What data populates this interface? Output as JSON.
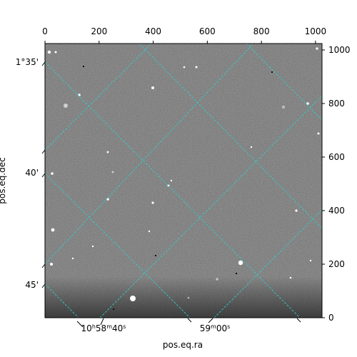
{
  "chart_data": {
    "type": "image",
    "xlabel": "pos.eq.ra",
    "ylabel": "pos.eq.dec",
    "pixel_axes": {
      "x": {
        "range": [
          0,
          1024
        ],
        "ticks": [
          0,
          200,
          400,
          600,
          800,
          1000
        ]
      },
      "y": {
        "range": [
          0,
          1024
        ],
        "ticks": [
          0,
          200,
          400,
          600,
          800,
          1000
        ]
      }
    },
    "ra_ticks": [
      {
        "label": "10h58m40s",
        "base": "10",
        "parts": [
          [
            "h",
            "58"
          ],
          [
            "m",
            "40"
          ],
          [
            "s",
            ""
          ]
        ]
      },
      {
        "label": "59m00s",
        "base": "59",
        "parts": [
          [
            "m",
            "00"
          ],
          [
            "s",
            ""
          ]
        ]
      }
    ],
    "dec_ticks": [
      "1°35'",
      "40'",
      "45'"
    ],
    "grid_color": "#33cccc",
    "image_colormap": "gray"
  }
}
